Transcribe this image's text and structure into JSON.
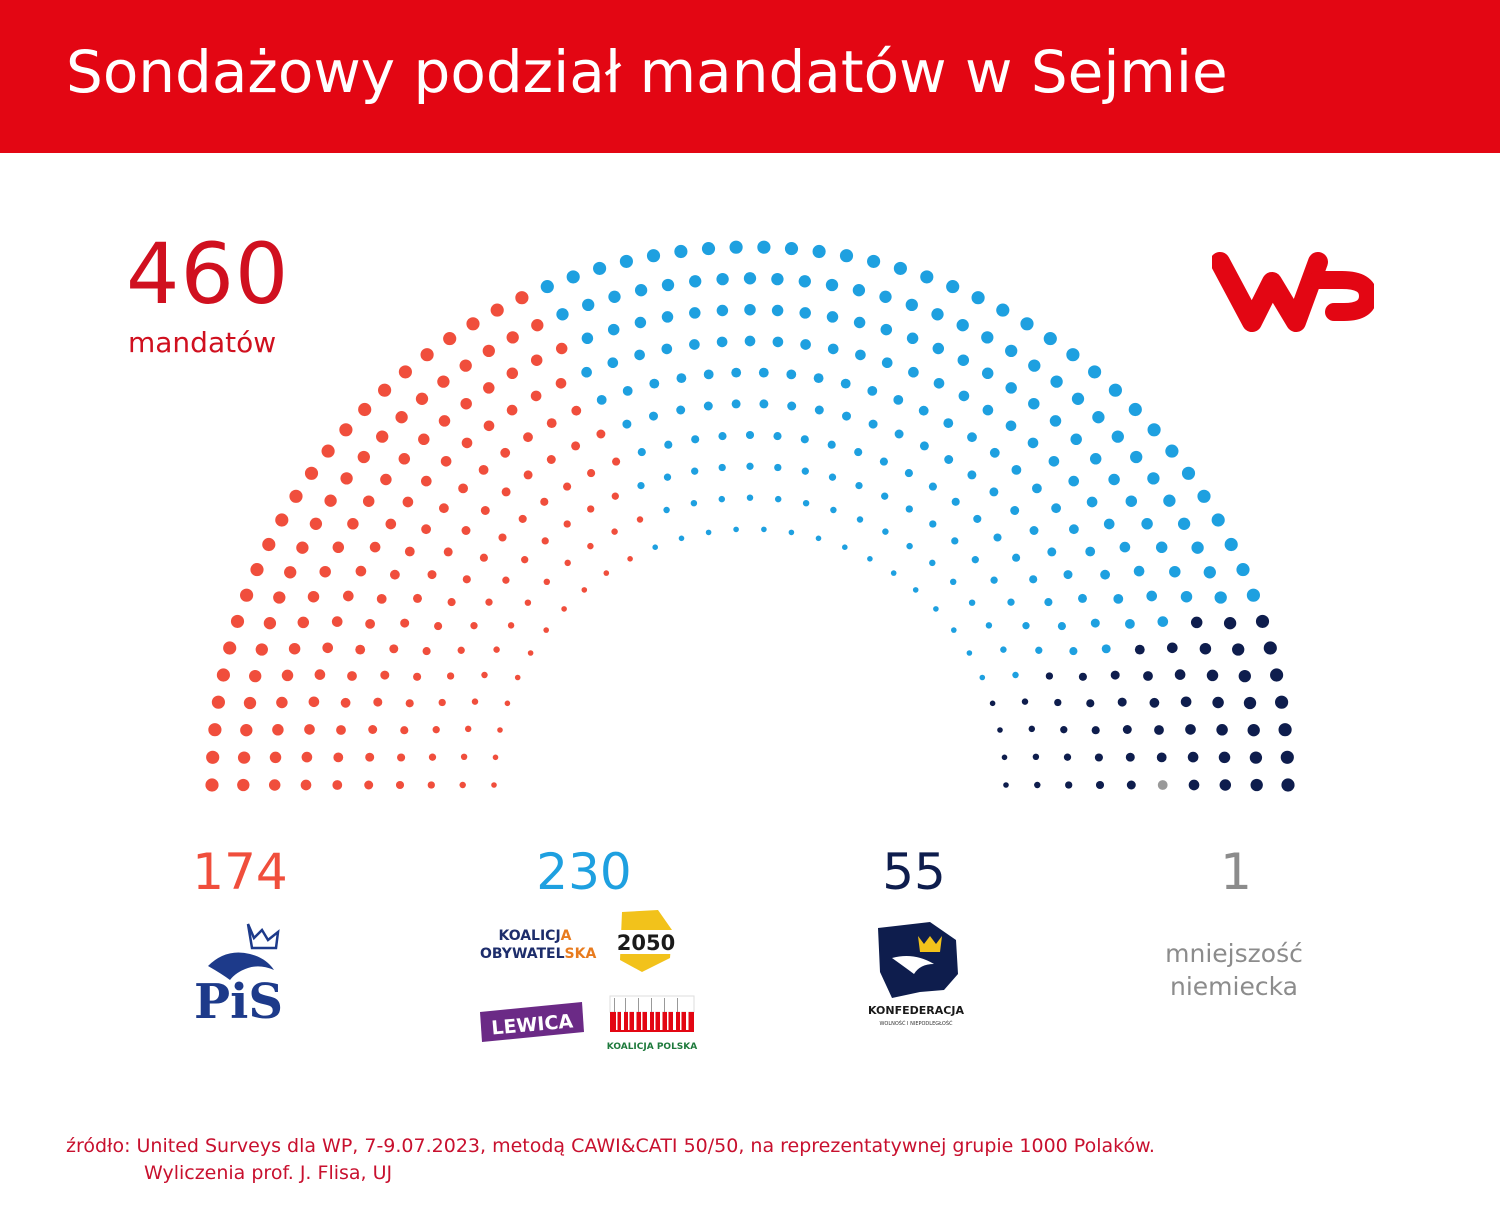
{
  "header": {
    "title": "Sondażowy podział mandatów w Sejmie"
  },
  "total": {
    "value": "460",
    "label": "mandatów"
  },
  "brand": {
    "logo_icon": "wp-logo-icon",
    "color": "#e30613"
  },
  "chart_data": {
    "type": "hemicycle",
    "title": "Sondażowy podział mandatów w Sejmie",
    "total_seats": 460,
    "series": [
      {
        "name": "PiS",
        "seats": 174,
        "seats_label": "174",
        "color": "#f04e3c"
      },
      {
        "name": "Koalicja Obywatelska, Polska 2050, Lewica, Koalicja Polska",
        "seats": 230,
        "seats_label": "230",
        "color": "#1ea0e0"
      },
      {
        "name": "Konfederacja",
        "seats": 55,
        "seats_label": "55",
        "color": "#0e1d4d"
      },
      {
        "name": "mniejszość niemiecka",
        "seats": 1,
        "seats_label": "1",
        "color": "#999999"
      }
    ]
  },
  "logos": {
    "pis": {
      "text": "PiS",
      "icon": "pis-eagle-crown-logo"
    },
    "ko": {
      "line1_a": "KOALICJ",
      "line1_b": "A",
      "line2_a": "OBYWATEL",
      "line2_b": "SKA"
    },
    "p2050": {
      "text": "2050"
    },
    "lewica": {
      "text": "LEWICA"
    },
    "kp": {
      "text": "KOALICJA POLSKA"
    },
    "konf": {
      "text": "KONFEDERACJA",
      "subtext": "WOLNOŚĆ I NIEPODLEGŁOŚĆ"
    }
  },
  "minority": {
    "line1": "mniejszość",
    "line2": "niemiecka"
  },
  "source": {
    "line1": "źródło: United Surveys dla WP, 7-9.07.2023, metodą CAWI&CATI 50/50, na reprezentatywnej grupie 1000 Polaków.",
    "line2": "Wyliczenia prof. J. Flisa, UJ"
  }
}
